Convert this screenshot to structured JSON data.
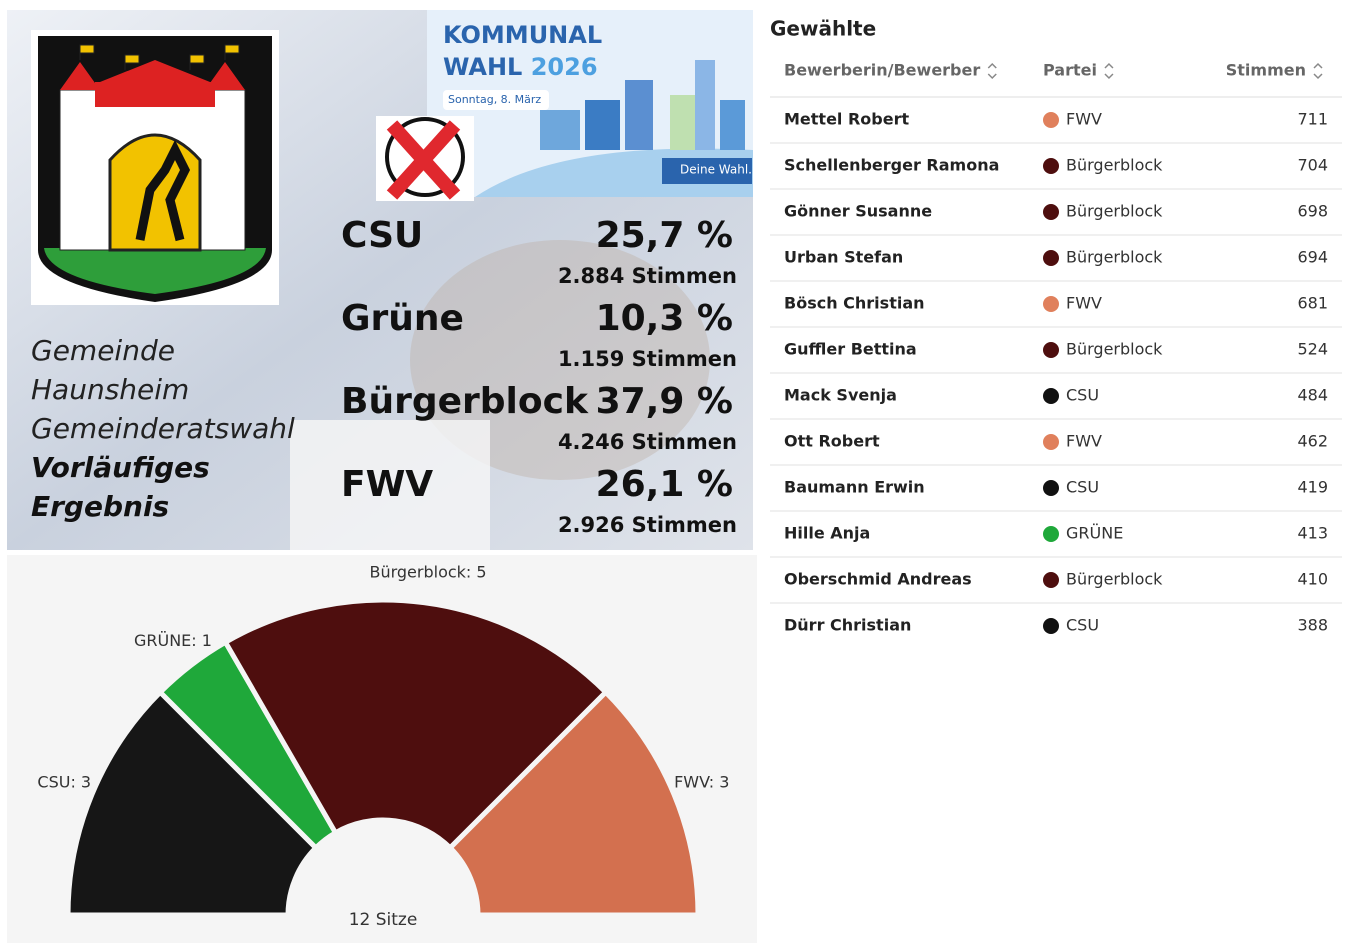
{
  "banner": {
    "line1": "KOMMUNAL",
    "line2": "WAHL",
    "year": "2026",
    "date": "Sonntag, 8. März",
    "brand": "Deine Wahl."
  },
  "caption": {
    "lines": [
      "Gemeinde",
      "Haunsheim",
      "Gemeinderatswahl"
    ],
    "bold_lines": [
      "Vorläufiges",
      "Ergebnis"
    ]
  },
  "results": [
    {
      "party": "CSU",
      "percent": "25,7 %",
      "votes": "2.884 Stimmen"
    },
    {
      "party": "Grüne",
      "percent": "10,3 %",
      "votes": "1.159 Stimmen"
    },
    {
      "party": "Bürgerblock",
      "percent": "37,9 %",
      "votes": "4.246 Stimmen"
    },
    {
      "party": "FWV",
      "percent": "26,1 %",
      "votes": "2.926 Stimmen"
    }
  ],
  "chart_data": {
    "type": "half-donut",
    "center_label": "12 Sitze",
    "values": [
      3,
      1,
      5,
      3
    ],
    "value_labels": [
      "CSU: 3",
      "GRÜNE: 1",
      "Bürgerblock: 5",
      "FWV: 3"
    ],
    "colors": [
      "#161616",
      "#1fa83a",
      "#4e0e0e",
      "#d3704f"
    ]
  },
  "table": {
    "title": "Gewählte",
    "columns": [
      "Bewerberin/Bewerber",
      "Partei",
      "Stimmen"
    ],
    "party_colors": {
      "FWV": "#e0805c",
      "Bürgerblock": "#4e0e0e",
      "CSU": "#111111",
      "GRÜNE": "#1fa83a"
    },
    "rows": [
      [
        "Mettel Robert",
        "FWV",
        711
      ],
      [
        "Schellenberger Ramona",
        "Bürgerblock",
        704
      ],
      [
        "Gönner Susanne",
        "Bürgerblock",
        698
      ],
      [
        "Urban Stefan",
        "Bürgerblock",
        694
      ],
      [
        "Bösch Christian",
        "FWV",
        681
      ],
      [
        "Guffler Bettina",
        "Bürgerblock",
        524
      ],
      [
        "Mack Svenja",
        "CSU",
        484
      ],
      [
        "Ott Robert",
        "FWV",
        462
      ],
      [
        "Baumann Erwin",
        "CSU",
        419
      ],
      [
        "Hille Anja",
        "GRÜNE",
        413
      ],
      [
        "Oberschmid Andreas",
        "Bürgerblock",
        410
      ],
      [
        "Dürr Christian",
        "CSU",
        388
      ]
    ]
  }
}
